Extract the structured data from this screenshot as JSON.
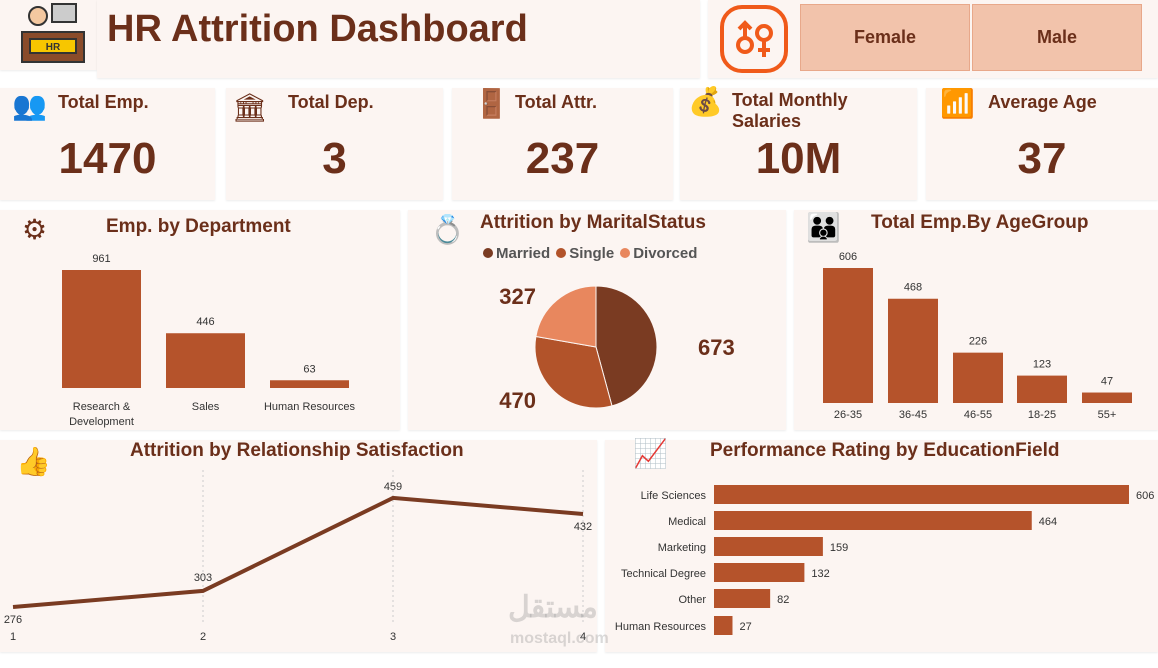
{
  "header": {
    "title": "HR Attrition Dashboard",
    "logo_text": "HR"
  },
  "gender_filter": {
    "options": [
      "Female",
      "Male"
    ]
  },
  "kpis": [
    {
      "label": "Total Emp.",
      "value": "1470",
      "icon": "employees-icon"
    },
    {
      "label": "Total Dep.",
      "value": "3",
      "icon": "departments-icon"
    },
    {
      "label": "Total Attr.",
      "value": "237",
      "icon": "exit-door-icon"
    },
    {
      "label": "Total Monthly Salaries",
      "value": "10M",
      "icon": "money-bag-icon"
    },
    {
      "label": "Average Age",
      "value": "37",
      "icon": "age-steps-icon"
    }
  ],
  "colors": {
    "bar": "#b5532b",
    "married": "#7a3b22",
    "single": "#b2532a",
    "divorced": "#e8875e",
    "title": "#6b2f1a"
  },
  "chart_data": [
    {
      "type": "bar",
      "title": "Emp. by Department",
      "categories": [
        "Research & Development",
        "Sales",
        "Human Resources"
      ],
      "values": [
        961,
        446,
        63
      ]
    },
    {
      "type": "pie",
      "title": "Attrition by MaritalStatus",
      "legend_position": "top",
      "categories": [
        "Married",
        "Single",
        "Divorced"
      ],
      "values": [
        673,
        470,
        327
      ]
    },
    {
      "type": "bar",
      "title": "Total Emp.By AgeGroup",
      "categories": [
        "26-35",
        "36-45",
        "46-55",
        "18-25",
        "55+"
      ],
      "values": [
        606,
        468,
        226,
        123,
        47
      ]
    },
    {
      "type": "line",
      "title": "Attrition by Relationship Satisfaction",
      "x": [
        "1",
        "2",
        "3",
        "4"
      ],
      "values": [
        276,
        303,
        459,
        432
      ],
      "grid": "vertical-dotted"
    },
    {
      "type": "bar",
      "orientation": "horizontal",
      "title": "Performance Rating by EducationField",
      "categories": [
        "Life Sciences",
        "Medical",
        "Marketing",
        "Technical Degree",
        "Other",
        "Human Resources"
      ],
      "values": [
        606,
        464,
        159,
        132,
        82,
        27
      ]
    }
  ],
  "watermark": {
    "arabic": "مستقل",
    "latin": "mostaql.com"
  }
}
